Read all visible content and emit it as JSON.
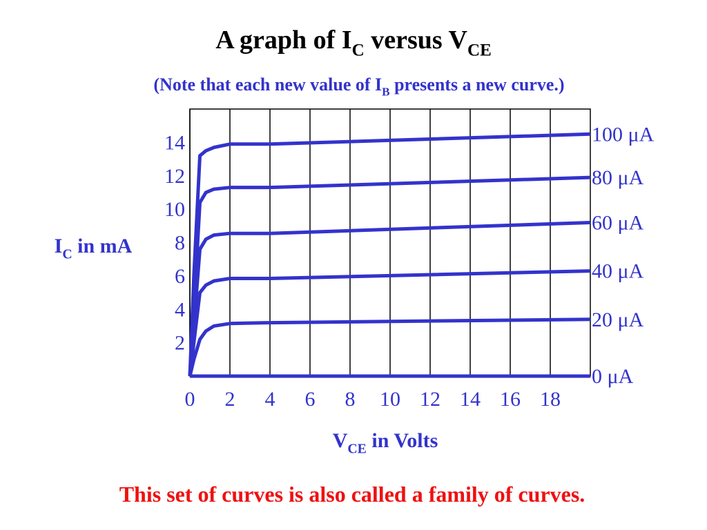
{
  "chart_data": {
    "type": "line",
    "title": [
      "A graph of I",
      "C",
      " versus V",
      "CE"
    ],
    "subtitle": [
      "(Note that each new value of I",
      "B",
      " presents a new curve.)"
    ],
    "x_label": [
      "V",
      "CE",
      " in Volts"
    ],
    "y_label": [
      "I",
      "C",
      " in mA"
    ],
    "annotation": "This set of curves is also called a family of curves.",
    "x": [
      0,
      0.2,
      0.5,
      0.8,
      1.2,
      2,
      4,
      20
    ],
    "series": [
      {
        "name": "100 μA",
        "color": "#3333cc",
        "values": [
          0,
          6,
          13.2,
          13.5,
          13.7,
          13.9,
          13.9,
          14.5
        ]
      },
      {
        "name": "80 μA",
        "color": "#3333cc",
        "values": [
          0,
          4,
          10.4,
          11.0,
          11.2,
          11.3,
          11.3,
          11.9
        ]
      },
      {
        "name": "60 μA",
        "color": "#3333cc",
        "values": [
          0,
          3,
          7.6,
          8.2,
          8.45,
          8.55,
          8.55,
          9.2
        ]
      },
      {
        "name": "40 μA",
        "color": "#3333cc",
        "values": [
          0,
          2,
          5.0,
          5.45,
          5.7,
          5.85,
          5.85,
          6.3
        ]
      },
      {
        "name": "20 μA",
        "color": "#3333cc",
        "values": [
          0,
          1,
          2.2,
          2.7,
          3.0,
          3.15,
          3.2,
          3.4
        ]
      },
      {
        "name": "0 μA",
        "color": "#3333cc",
        "values": [
          0,
          0,
          0,
          0,
          0,
          0,
          0,
          0
        ]
      }
    ],
    "xlim": [
      0,
      20
    ],
    "xticks": [
      0,
      2,
      4,
      6,
      8,
      10,
      12,
      14,
      16,
      18
    ],
    "ylim": [
      0,
      16
    ],
    "yticks": [
      2,
      4,
      6,
      8,
      10,
      12,
      14
    ],
    "grid": "x"
  }
}
